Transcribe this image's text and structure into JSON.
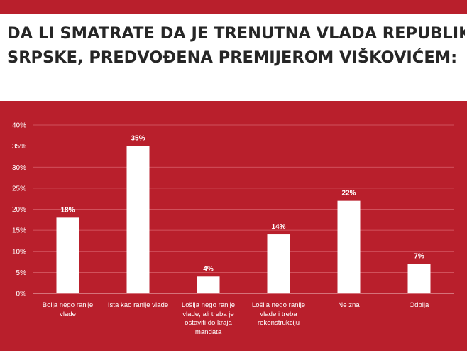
{
  "title_lines": [
    "DA LI SMATRATE DA JE TRENUTNA VLADA REPUBLIKE",
    "SRPSKE, PREDVOĐENA PREMIJEROM VIŠKOVIĆEM:"
  ],
  "colors": {
    "background": "#b91f2c",
    "bars": "#ffffff",
    "title_text": "#262626",
    "grid": "#d9626b"
  },
  "chart_data": {
    "type": "bar",
    "title": "DA LI SMATRATE DA JE TRENUTNA VLADA REPUBLIKE SRPSKE, PREDVOĐENA PREMIJEROM VIŠKOVIĆEM:",
    "categories": [
      "Bolja nego ranije vlade",
      "Ista kao ranije vlade",
      "Lošija nego ranije vlade, ali treba je ostaviti do kraja mandata",
      "Lošija nego ranije vlade i treba rekonstrukciju",
      "Ne zna",
      "Odbija"
    ],
    "category_lines": [
      [
        "Bolja nego ranije",
        "vlade"
      ],
      [
        "Ista kao ranije vlade"
      ],
      [
        "Lošija nego ranije",
        "vlade, ali treba je",
        "ostaviti do kraja",
        "mandata"
      ],
      [
        "Lošija nego ranije",
        "vlade i treba",
        "rekonstrukciju"
      ],
      [
        "Ne zna"
      ],
      [
        "Odbija"
      ]
    ],
    "values": [
      18,
      35,
      4,
      14,
      22,
      7
    ],
    "data_labels": [
      "18%",
      "35%",
      "4%",
      "14%",
      "22%",
      "7%"
    ],
    "ylim": [
      0,
      40
    ],
    "yticks": [
      0,
      5,
      10,
      15,
      20,
      25,
      30,
      35,
      40
    ],
    "ytick_labels": [
      "0%",
      "5%",
      "10%",
      "15%",
      "20%",
      "25%",
      "30%",
      "35%",
      "40%"
    ],
    "grid": true,
    "legend": "none"
  }
}
